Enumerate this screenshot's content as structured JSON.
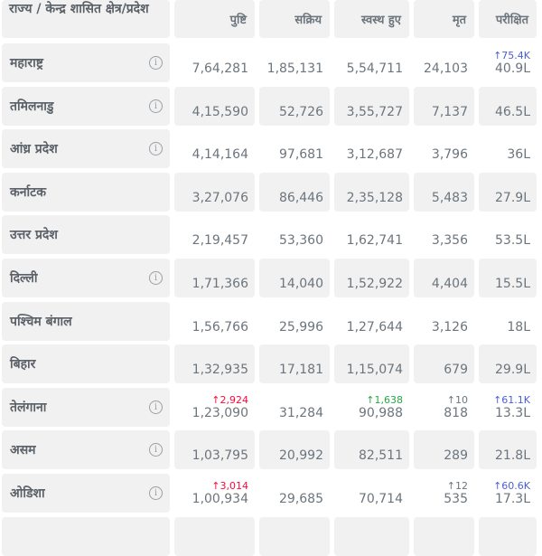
{
  "header": {
    "state": "राज्य / केन्द्र शासित क्षेत्र/प्रदेश",
    "confirmed": "पुष्टि",
    "active": "सक्रिय",
    "recovered": "स्वस्थ हुए",
    "deceased": "मृत",
    "tested": "परीक्षित"
  },
  "colors": {
    "confirmed_delta": "#ff073a",
    "recovered_delta": "#28a745",
    "deceased_delta": "#6c757d",
    "tested_delta": "#4b5ed7"
  },
  "rows": [
    {
      "state": "महाराष्ट्र",
      "info": true,
      "confirmed": "7,64,281",
      "active": "1,85,131",
      "recovered": "5,54,711",
      "deceased": "24,103",
      "tested": "40.9L",
      "d_tested": "↑75.4K"
    },
    {
      "state": "तमिलनाडु",
      "info": true,
      "confirmed": "4,15,590",
      "active": "52,726",
      "recovered": "3,55,727",
      "deceased": "7,137",
      "tested": "46.5L"
    },
    {
      "state": "आंध्र प्रदेश",
      "info": true,
      "confirmed": "4,14,164",
      "active": "97,681",
      "recovered": "3,12,687",
      "deceased": "3,796",
      "tested": "36L"
    },
    {
      "state": "कर्नाटक",
      "info": false,
      "confirmed": "3,27,076",
      "active": "86,446",
      "recovered": "2,35,128",
      "deceased": "5,483",
      "tested": "27.9L"
    },
    {
      "state": "उत्तर प्रदेश",
      "info": false,
      "confirmed": "2,19,457",
      "active": "53,360",
      "recovered": "1,62,741",
      "deceased": "3,356",
      "tested": "53.5L"
    },
    {
      "state": "दिल्ली",
      "info": true,
      "confirmed": "1,71,366",
      "active": "14,040",
      "recovered": "1,52,922",
      "deceased": "4,404",
      "tested": "15.5L"
    },
    {
      "state": "पश्चिम बंगाल",
      "info": false,
      "confirmed": "1,56,766",
      "active": "25,996",
      "recovered": "1,27,644",
      "deceased": "3,126",
      "tested": "18L"
    },
    {
      "state": "बिहार",
      "info": false,
      "confirmed": "1,32,935",
      "active": "17,181",
      "recovered": "1,15,074",
      "deceased": "679",
      "tested": "29.9L"
    },
    {
      "state": "तेलंगाना",
      "info": true,
      "confirmed": "1,23,090",
      "active": "31,284",
      "recovered": "90,988",
      "deceased": "818",
      "tested": "13.3L",
      "d_confirmed": "↑2,924",
      "d_recovered": "↑1,638",
      "d_deceased": "↑10",
      "d_tested": "↑61.1K"
    },
    {
      "state": "असम",
      "info": true,
      "confirmed": "1,03,795",
      "active": "20,992",
      "recovered": "82,511",
      "deceased": "289",
      "tested": "21.8L"
    },
    {
      "state": "ओडिशा",
      "info": true,
      "confirmed": "1,00,934",
      "active": "29,685",
      "recovered": "70,714",
      "deceased": "535",
      "tested": "17.3L",
      "d_confirmed": "↑3,014",
      "d_deceased": "↑12",
      "d_tested": "↑60.6K"
    }
  ],
  "info_icon": "i"
}
